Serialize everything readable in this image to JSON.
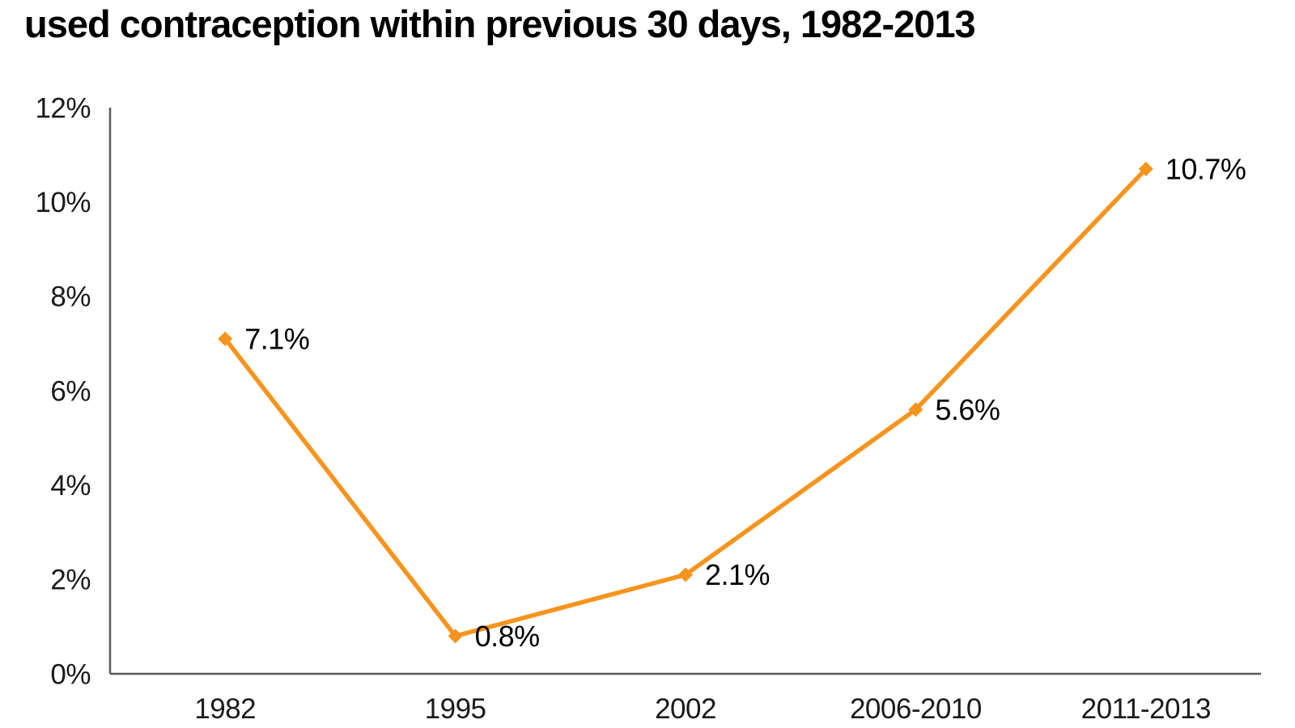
{
  "title": "used contraception within previous 30 days, 1982-2013",
  "chart_data": {
    "type": "line",
    "title": "used contraception within previous 30 days, 1982-2013",
    "categories": [
      "1982",
      "1995",
      "2002",
      "2006-2010",
      "2011-2013"
    ],
    "series": [
      {
        "name": "used contraception within previous 30 days",
        "values": [
          7.1,
          0.8,
          2.1,
          5.6,
          10.7
        ],
        "point_labels": [
          "7.1%",
          "0.8%",
          "2.1%",
          "5.6%",
          "10.7%"
        ]
      }
    ],
    "xlabel": "",
    "ylabel": "",
    "y_axis": {
      "min": 0,
      "max": 12,
      "step": 2,
      "tick_labels": [
        "0%",
        "2%",
        "4%",
        "6%",
        "8%",
        "10%",
        "12%"
      ]
    },
    "grid": false,
    "legend": false,
    "marker": "diamond",
    "colors": {
      "line": "#F7941E",
      "marker": "#F7941E",
      "axis": "#595959",
      "tick_text": "#1a1a1a",
      "data_label_text": "#000000",
      "title_text": "#000000"
    }
  }
}
